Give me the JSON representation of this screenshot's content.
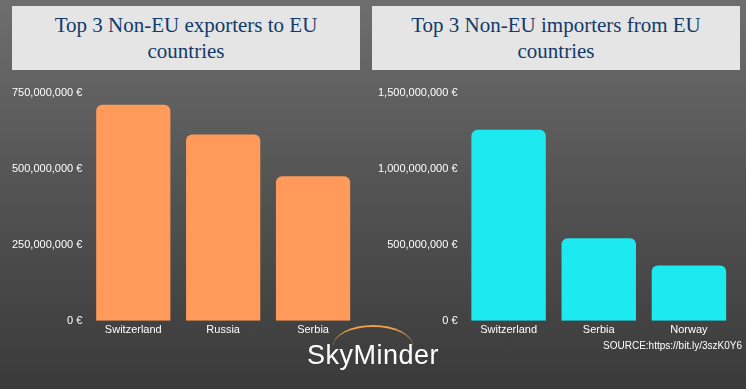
{
  "chart_data": [
    {
      "type": "bar",
      "title": "Top 3 Non-EU exporters to EU countries",
      "categories": [
        "Switzerland",
        "Russia",
        "Serbia"
      ],
      "values": [
        710000000,
        612000000,
        475000000
      ],
      "color": "#ff9a5a",
      "ylim": [
        0,
        750000000
      ],
      "yticks": [
        {
          "value": 0,
          "label": "0 €"
        },
        {
          "value": 250000000,
          "label": "250,000,000 €"
        },
        {
          "value": 500000000,
          "label": "500,000,000 €"
        },
        {
          "value": 750000000,
          "label": "750,000,000 €"
        }
      ],
      "grid": false
    },
    {
      "type": "bar",
      "title": "Top 3 Non-EU importers from EU countries",
      "categories": [
        "Switzerland",
        "Serbia",
        "Norway"
      ],
      "values": [
        1255000000,
        543000000,
        364000000
      ],
      "color": "#1de9f0",
      "ylim": [
        0,
        1500000000
      ],
      "yticks": [
        {
          "value": 0,
          "label": "0 €"
        },
        {
          "value": 500000000,
          "label": "500,000,000 €"
        },
        {
          "value": 1000000000,
          "label": "1,000,000,000 €"
        },
        {
          "value": 1500000000,
          "label": "1,500,000,000 €"
        }
      ],
      "grid": false
    }
  ],
  "logo": "SkyMinder",
  "source": "SOURCE:https://bit.ly/3szK0Y6"
}
